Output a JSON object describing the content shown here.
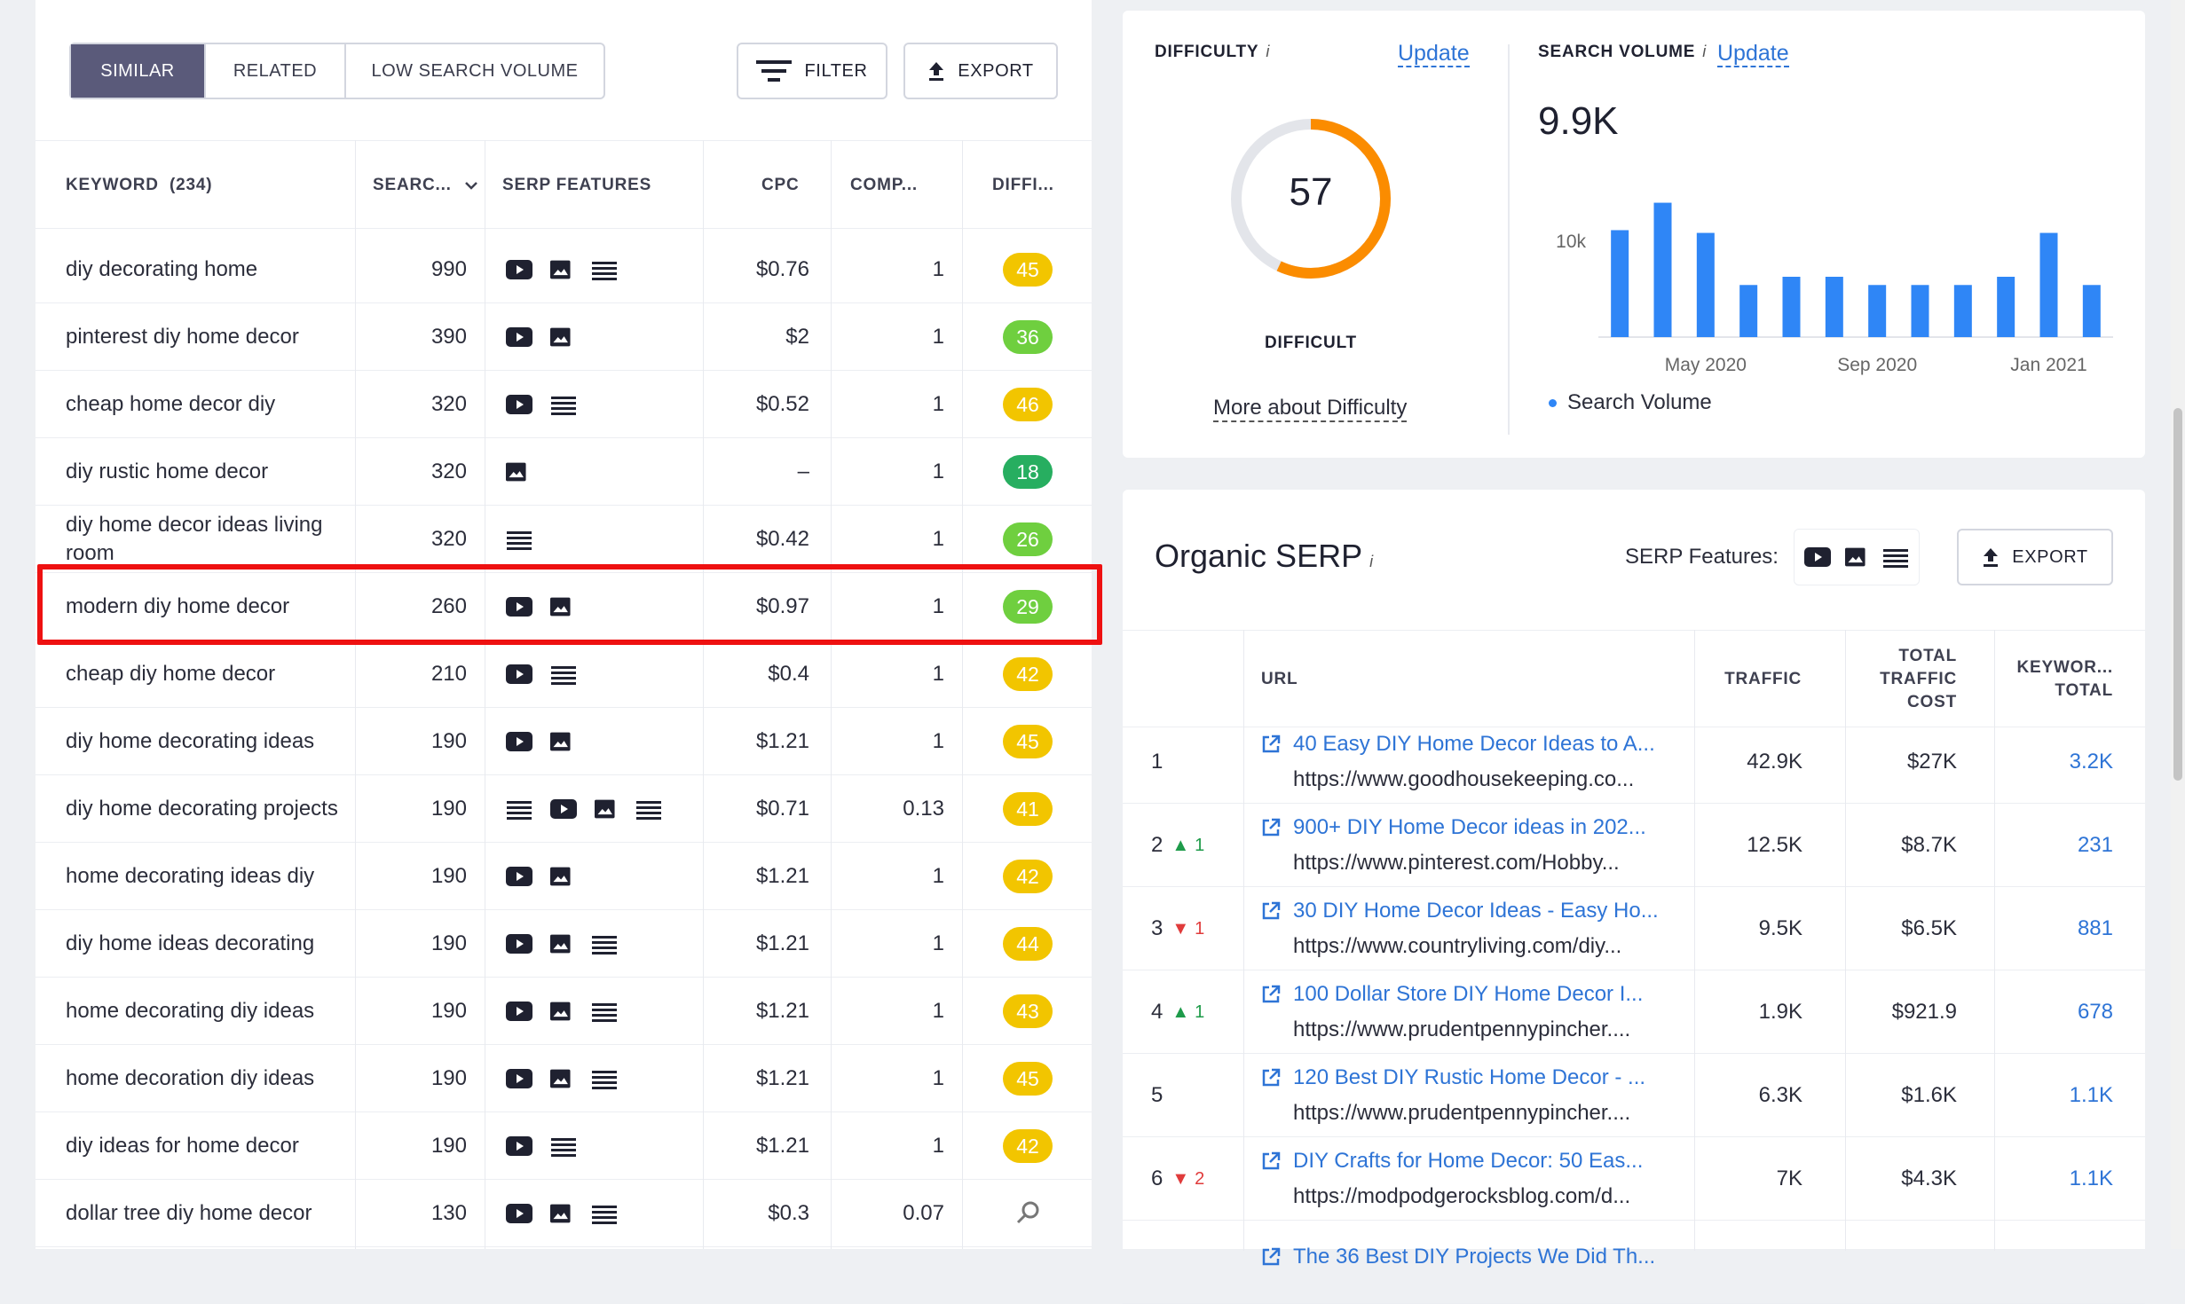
{
  "tabs": [
    "SIMILAR",
    "RELATED",
    "LOW SEARCH VOLUME"
  ],
  "toolbar": {
    "filter": "FILTER",
    "export": "EXPORT"
  },
  "columns": {
    "keyword": "KEYWORD",
    "count": "(234)",
    "search": "SEARC...",
    "serp": "SERP FEATURES",
    "cpc": "CPC",
    "comp": "COMP...",
    "diff": "DIFFI..."
  },
  "rows": [
    {
      "kw": "diy decorating home",
      "vol": "990",
      "f": [
        "video-icon",
        "image-icon",
        "list-icon"
      ],
      "cpc": "$0.76",
      "comp": "1",
      "d": "45",
      "c": "#f2c500"
    },
    {
      "kw": "pinterest diy home decor",
      "vol": "390",
      "f": [
        "video-icon",
        "image-icon"
      ],
      "cpc": "$2",
      "comp": "1",
      "d": "36",
      "c": "#6fcf3f"
    },
    {
      "kw": "cheap home decor diy",
      "vol": "320",
      "f": [
        "video-icon",
        "list-icon"
      ],
      "cpc": "$0.52",
      "comp": "1",
      "d": "46",
      "c": "#f2c500"
    },
    {
      "kw": "diy rustic home decor",
      "vol": "320",
      "f": [
        "image-icon"
      ],
      "cpc": "–",
      "comp": "1",
      "d": "18",
      "c": "#27ae60"
    },
    {
      "kw": "diy home decor ideas living room",
      "vol": "320",
      "f": [
        "list-icon"
      ],
      "cpc": "$0.42",
      "comp": "1",
      "d": "26",
      "c": "#6fcf3f"
    },
    {
      "kw": "modern diy home decor",
      "vol": "260",
      "f": [
        "video-icon",
        "image-icon"
      ],
      "cpc": "$0.97",
      "comp": "1",
      "d": "29",
      "c": "#6fcf3f"
    },
    {
      "kw": "cheap diy home decor",
      "vol": "210",
      "f": [
        "video-icon",
        "list-icon"
      ],
      "cpc": "$0.4",
      "comp": "1",
      "d": "42",
      "c": "#f2c500"
    },
    {
      "kw": "diy home decorating ideas",
      "vol": "190",
      "f": [
        "video-icon",
        "image-icon"
      ],
      "cpc": "$1.21",
      "comp": "1",
      "d": "45",
      "c": "#f2c500"
    },
    {
      "kw": "diy home decorating projects",
      "vol": "190",
      "f": [
        "list-icon",
        "video-icon",
        "image-icon",
        "list-icon"
      ],
      "cpc": "$0.71",
      "comp": "0.13",
      "d": "41",
      "c": "#f2c500"
    },
    {
      "kw": "home decorating ideas diy",
      "vol": "190",
      "f": [
        "video-icon",
        "image-icon"
      ],
      "cpc": "$1.21",
      "comp": "1",
      "d": "42",
      "c": "#f2c500"
    },
    {
      "kw": "diy home ideas decorating",
      "vol": "190",
      "f": [
        "video-icon",
        "image-icon",
        "list-icon"
      ],
      "cpc": "$1.21",
      "comp": "1",
      "d": "44",
      "c": "#f2c500"
    },
    {
      "kw": "home decorating diy ideas",
      "vol": "190",
      "f": [
        "video-icon",
        "image-icon",
        "list-icon"
      ],
      "cpc": "$1.21",
      "comp": "1",
      "d": "43",
      "c": "#f2c500"
    },
    {
      "kw": "home decoration diy ideas",
      "vol": "190",
      "f": [
        "video-icon",
        "image-icon",
        "list-icon"
      ],
      "cpc": "$1.21",
      "comp": "1",
      "d": "45",
      "c": "#f2c500"
    },
    {
      "kw": "diy ideas for home decor",
      "vol": "190",
      "f": [
        "video-icon",
        "list-icon"
      ],
      "cpc": "$1.21",
      "comp": "1",
      "d": "42",
      "c": "#f2c500"
    },
    {
      "kw": "dollar tree diy home decor",
      "vol": "130",
      "f": [
        "video-icon",
        "image-icon",
        "list-icon"
      ],
      "cpc": "$0.3",
      "comp": "0.07",
      "d": "",
      "c": ""
    }
  ],
  "difficulty": {
    "label": "DIFFICULTY",
    "info": "i",
    "update": "Update",
    "value": "57",
    "level": 0.57,
    "word": "DIFFICULT",
    "more": "More about Difficulty"
  },
  "volume": {
    "label": "SEARCH VOLUME",
    "info": "i",
    "update": "Update",
    "value": "9.9K",
    "legend": "Search Volume"
  },
  "chart_data": {
    "type": "bar",
    "values": [
      10400,
      11400,
      10300,
      8400,
      8700,
      8700,
      8400,
      8400,
      8400,
      8700,
      10300,
      8400
    ],
    "yticks": [
      "10k"
    ],
    "ytick_values": [
      10000
    ],
    "xticks": [
      "May 2020",
      "Sep 2020",
      "Jan 2021"
    ],
    "xtick_index": [
      2,
      6,
      10
    ],
    "ylim": [
      6500,
      12000
    ],
    "color": "#2f86f6",
    "legend": "Search Volume"
  },
  "serp": {
    "title": "Organic SERP",
    "info": "i",
    "features_label": "SERP Features:",
    "export": "EXPORT",
    "columns": {
      "url": "URL",
      "traffic": "TRAFFIC",
      "cost1": "TOTAL",
      "cost2": "TRAFFIC",
      "cost3": "COST",
      "kw1": "KEYWOR...",
      "kw2": "TOTAL"
    },
    "rows": [
      {
        "pos": "1",
        "ch": "",
        "dir": "",
        "title": "40 Easy DIY Home Decor Ideas to A...",
        "url": "https://www.goodhousekeeping.co...",
        "traffic": "42.9K",
        "cost": "$27K",
        "kw": "3.2K"
      },
      {
        "pos": "2",
        "ch": "1",
        "dir": "up",
        "title": "900+ DIY Home Decor ideas in 202...",
        "url": "https://www.pinterest.com/Hobby...",
        "traffic": "12.5K",
        "cost": "$8.7K",
        "kw": "231"
      },
      {
        "pos": "3",
        "ch": "1",
        "dir": "down",
        "title": "30 DIY Home Decor Ideas - Easy Ho...",
        "url": "https://www.countryliving.com/diy...",
        "traffic": "9.5K",
        "cost": "$6.5K",
        "kw": "881"
      },
      {
        "pos": "4",
        "ch": "1",
        "dir": "up",
        "title": "100 Dollar Store DIY Home Decor I...",
        "url": "https://www.prudentpennypincher....",
        "traffic": "1.9K",
        "cost": "$921.9",
        "kw": "678"
      },
      {
        "pos": "5",
        "ch": "",
        "dir": "",
        "title": "120 Best DIY Rustic Home Decor - ...",
        "url": "https://www.prudentpennypincher....",
        "traffic": "6.3K",
        "cost": "$1.6K",
        "kw": "1.1K"
      },
      {
        "pos": "6",
        "ch": "2",
        "dir": "down",
        "title": "DIY Crafts for Home Decor: 50 Eas...",
        "url": "https://modpodgerocksblog.com/d...",
        "traffic": "7K",
        "cost": "$4.3K",
        "kw": "1.1K"
      },
      {
        "pos": "",
        "ch": "",
        "dir": "",
        "title": "The 36 Best DIY Projects We Did Th...",
        "url": "",
        "traffic": "",
        "cost": "",
        "kw": ""
      }
    ]
  }
}
